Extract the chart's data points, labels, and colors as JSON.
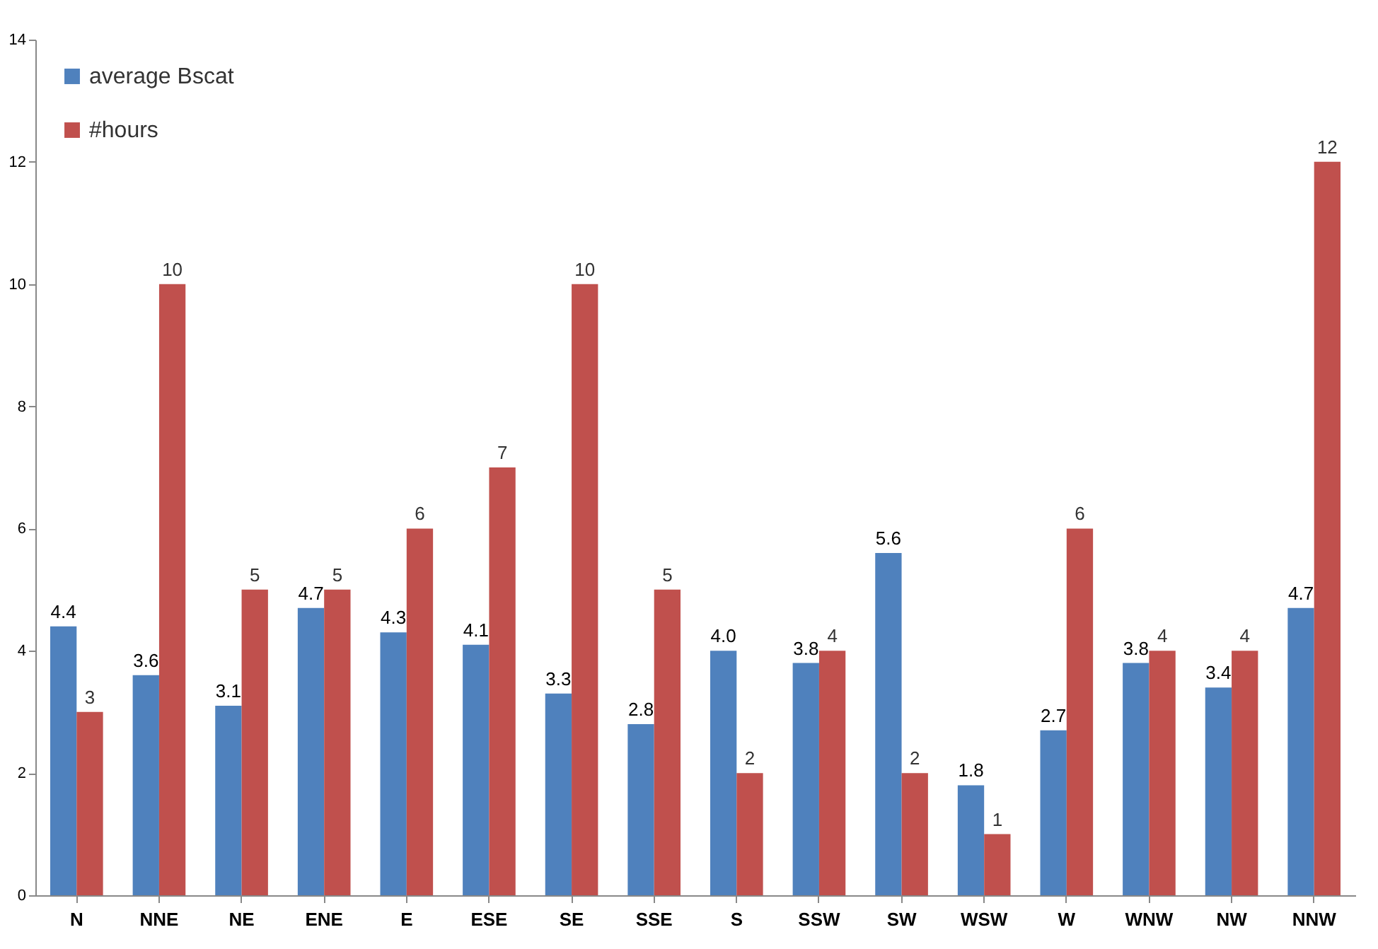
{
  "chart_data": {
    "type": "bar",
    "categories": [
      "N",
      "NNE",
      "NE",
      "ENE",
      "E",
      "ESE",
      "SE",
      "SSE",
      "S",
      "SSW",
      "SW",
      "WSW",
      "W",
      "WNW",
      "NW",
      "NNW"
    ],
    "series": [
      {
        "name": "average Bscat",
        "color": "#4f81bd",
        "values": [
          4.4,
          3.6,
          3.1,
          4.7,
          4.3,
          4.1,
          3.3,
          2.8,
          4.0,
          3.8,
          5.6,
          1.8,
          2.7,
          3.8,
          3.4,
          4.7
        ],
        "value_labels": [
          "4.4",
          "3.6",
          "3.1",
          "4.7",
          "4.3",
          "4.1",
          "3.3",
          "2.8",
          "4.0",
          "3.8",
          "5.6",
          "1.8",
          "2.7",
          "3.8",
          "3.4",
          "4.7"
        ]
      },
      {
        "name": "#hours",
        "color": "#c0504d",
        "values": [
          3,
          10,
          5,
          5,
          6,
          7,
          10,
          5,
          2,
          4,
          2,
          1,
          6,
          4,
          4,
          12
        ],
        "value_labels": [
          "3",
          "10",
          "5",
          "5",
          "6",
          "7",
          "10",
          "5",
          "2",
          "4",
          "2",
          "1",
          "6",
          "4",
          "4",
          "12"
        ]
      }
    ],
    "ylim": [
      0,
      14
    ],
    "yticks": [
      0,
      2,
      4,
      6,
      8,
      10,
      12,
      14
    ],
    "grid": false,
    "legend": "top left"
  }
}
